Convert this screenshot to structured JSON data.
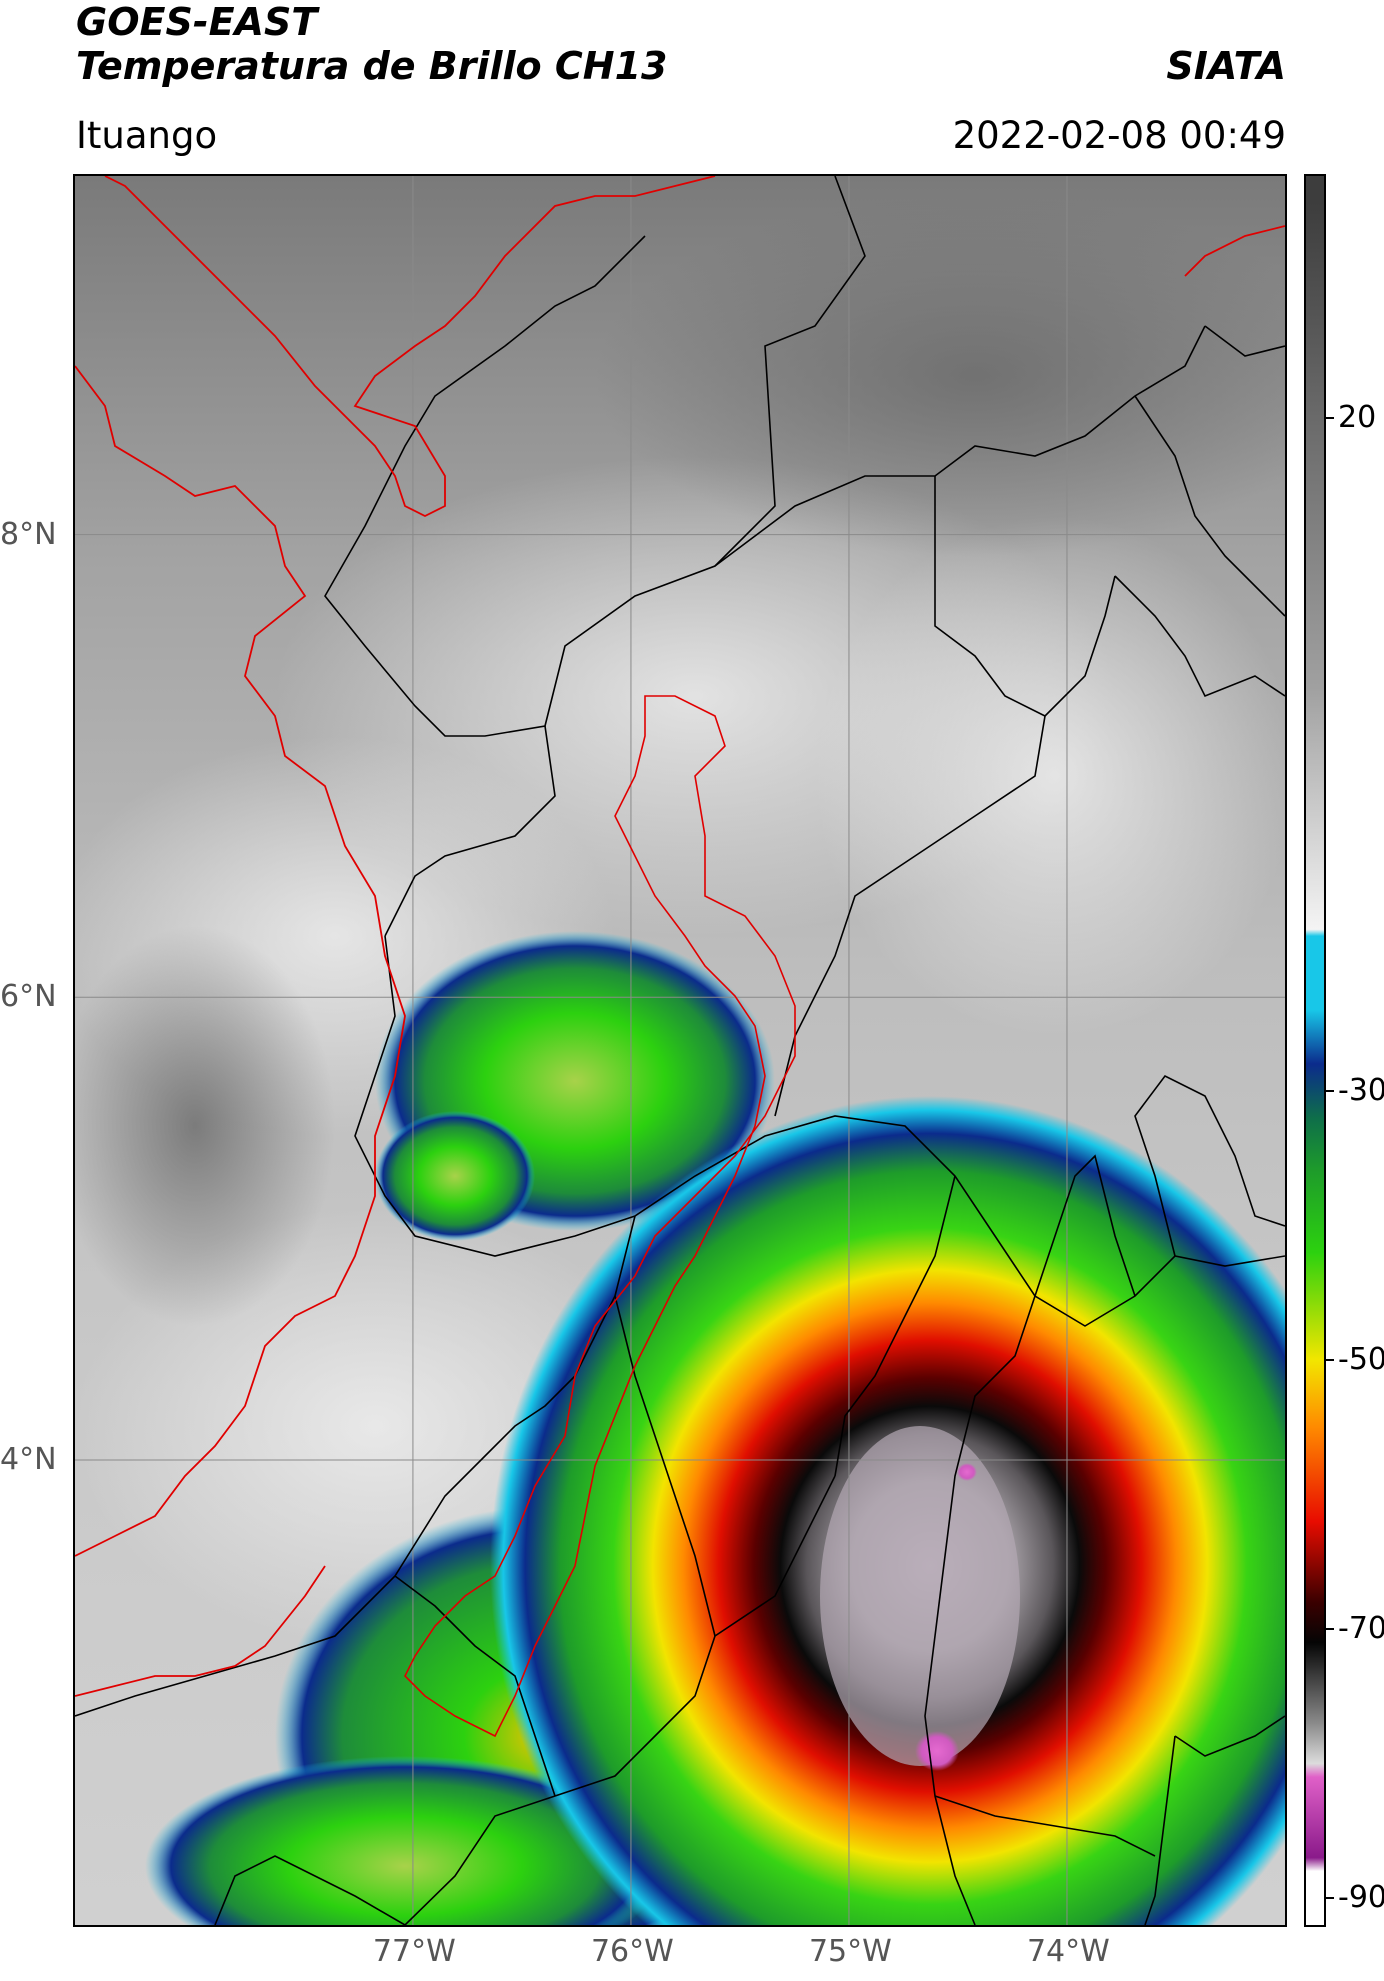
{
  "header": {
    "satellite": "GOES-EAST",
    "product": "Temperatura de Brillo CH13",
    "org": "SIATA",
    "location": "Ituango",
    "datetime": "2022-02-08 00:49"
  },
  "map": {
    "lon_range": [
      -78.55,
      -73.0
    ],
    "lat_range": [
      1.99,
      9.55
    ],
    "lon_ticks": [
      -77,
      -76,
      -75,
      -74
    ],
    "lon_labels": [
      "77°W",
      "76°W",
      "75°W",
      "74°W"
    ],
    "lat_ticks": [
      4,
      6,
      8
    ],
    "lat_labels": [
      "4°N",
      "6°N",
      "8°N"
    ],
    "gridlines": true,
    "layers": [
      "cloud-top-brightness-temperature",
      "department-boundaries",
      "coastline",
      "watershed-boundary"
    ]
  },
  "colorbar": {
    "min": -92,
    "max": 38,
    "ticks": [
      20,
      -30,
      -50,
      -70,
      -90
    ],
    "tick_labels": [
      "20",
      "-30",
      "-50",
      "-70",
      "-90"
    ],
    "colors": {
      "warm_gray_light": "#f4f4f4",
      "warm_gray_dark": "#3d3d3d",
      "cyan": "#18c7e8",
      "blue": "#0b2b8c",
      "green": "#2cd10f",
      "yellow": "#f2e600",
      "orange": "#ff8a00",
      "red": "#e80c00",
      "dark_red": "#3a0000",
      "black": "#050505",
      "magenta": "#e060c8",
      "purple": "#8a1a8a"
    }
  }
}
